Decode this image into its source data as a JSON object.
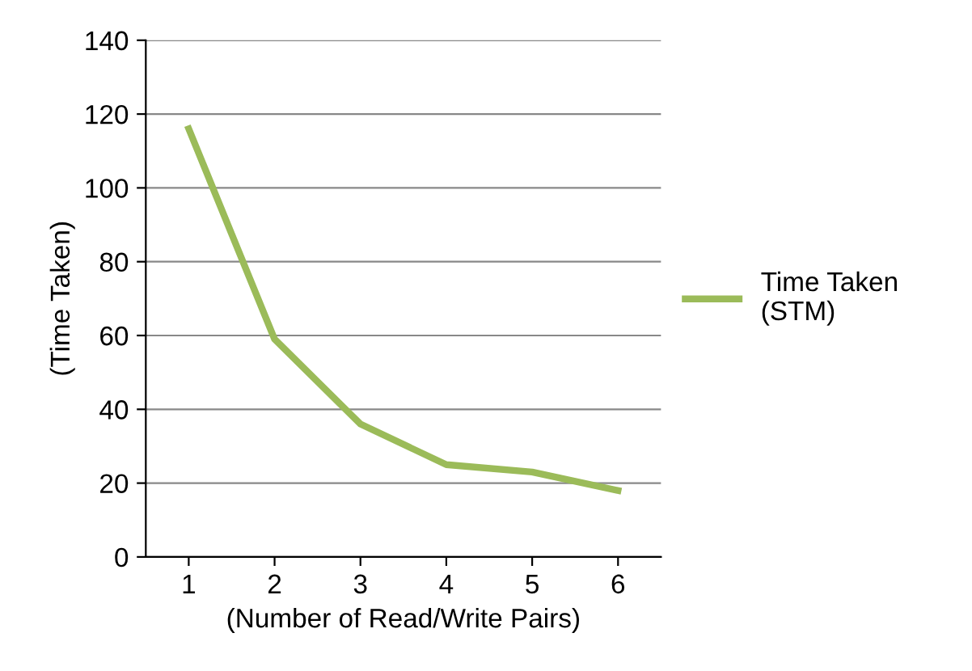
{
  "chart_data": {
    "type": "line",
    "xlabel": "(Number of Read/Write Pairs)",
    "ylabel": "(Time Taken)",
    "categories": [
      "1",
      "2",
      "3",
      "4",
      "5",
      "6"
    ],
    "series": [
      {
        "name": "Time Taken\n(STM)",
        "color": "#9bbb59",
        "values": [
          116,
          59,
          36,
          25,
          23,
          18
        ]
      }
    ],
    "ylim": [
      0,
      140
    ],
    "yticks": [
      0,
      20,
      40,
      60,
      80,
      100,
      120,
      140
    ],
    "grid": "y",
    "legend": "right",
    "marker": "none",
    "line_style": "solid"
  }
}
